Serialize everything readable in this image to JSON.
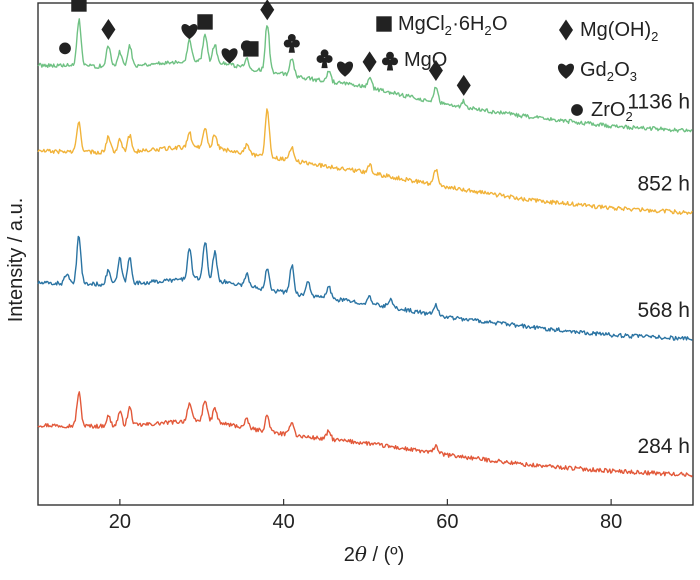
{
  "chart_data": {
    "type": "line",
    "xlabel": "2θ / (º)",
    "ylabel": "Intensity / a.u.",
    "xlim": [
      10,
      90
    ],
    "x_ticks": [
      20,
      40,
      60,
      80
    ],
    "y_ticks_shown": false,
    "grid": false,
    "series": [
      {
        "name": "284 h",
        "color": "#e2593a",
        "peaks": [
          [
            15.0,
            33
          ],
          [
            18.6,
            10
          ],
          [
            20.0,
            14
          ],
          [
            21.2,
            18
          ],
          [
            28.5,
            18
          ],
          [
            30.4,
            22
          ],
          [
            31.6,
            14
          ],
          [
            35.5,
            8
          ],
          [
            38.0,
            16
          ],
          [
            41.0,
            14
          ],
          [
            45.5,
            8
          ],
          [
            58.6,
            8
          ]
        ],
        "baseline": [
          [
            10,
            80
          ],
          [
            20,
            78
          ],
          [
            30,
            76
          ],
          [
            40,
            70
          ],
          [
            50,
            62
          ],
          [
            60,
            50
          ],
          [
            70,
            40
          ],
          [
            80,
            34
          ],
          [
            90,
            30
          ]
        ]
      },
      {
        "name": "568 h",
        "color": "#2b74a3",
        "peaks": [
          [
            13.5,
            10
          ],
          [
            15.0,
            48
          ],
          [
            18.6,
            14
          ],
          [
            20.0,
            25
          ],
          [
            21.2,
            26
          ],
          [
            28.5,
            30
          ],
          [
            30.4,
            38
          ],
          [
            31.6,
            28
          ],
          [
            35.5,
            12
          ],
          [
            38.0,
            22
          ],
          [
            41.0,
            28
          ],
          [
            43.0,
            14
          ],
          [
            45.5,
            12
          ],
          [
            50.5,
            6
          ],
          [
            53.0,
            8
          ],
          [
            58.6,
            10
          ]
        ],
        "baseline": [
          [
            10,
            222
          ],
          [
            20,
            220
          ],
          [
            30,
            218
          ],
          [
            40,
            212
          ],
          [
            50,
            202
          ],
          [
            60,
            188
          ],
          [
            70,
            178
          ],
          [
            80,
            170
          ],
          [
            90,
            166
          ]
        ]
      },
      {
        "name": "852 h",
        "color": "#f1b33a",
        "peaks": [
          [
            15.0,
            30
          ],
          [
            18.6,
            16
          ],
          [
            20.0,
            14
          ],
          [
            21.2,
            16
          ],
          [
            28.5,
            14
          ],
          [
            30.4,
            20
          ],
          [
            31.6,
            14
          ],
          [
            35.5,
            8
          ],
          [
            38.0,
            48
          ],
          [
            41.0,
            14
          ],
          [
            50.5,
            8
          ],
          [
            58.6,
            16
          ]
        ],
        "baseline": [
          [
            10,
            354
          ],
          [
            20,
            352
          ],
          [
            30,
            350
          ],
          [
            40,
            345
          ],
          [
            50,
            333
          ],
          [
            60,
            318
          ],
          [
            70,
            305
          ],
          [
            80,
            297
          ],
          [
            90,
            292
          ]
        ]
      },
      {
        "name": "1136 h",
        "color": "#6fc183",
        "peaks": [
          [
            15.0,
            46
          ],
          [
            18.6,
            20
          ],
          [
            20.0,
            14
          ],
          [
            21.2,
            20
          ],
          [
            28.5,
            22
          ],
          [
            30.4,
            28
          ],
          [
            31.6,
            18
          ],
          [
            35.5,
            10
          ],
          [
            38.0,
            48
          ],
          [
            41.0,
            18
          ],
          [
            45.5,
            10
          ],
          [
            50.5,
            10
          ],
          [
            58.6,
            16
          ],
          [
            62.0,
            6
          ]
        ],
        "baseline": [
          [
            10,
            440
          ],
          [
            20,
            438
          ],
          [
            30,
            436
          ],
          [
            40,
            430
          ],
          [
            50,
            418
          ],
          [
            60,
            400
          ],
          [
            70,
            388
          ],
          [
            80,
            379
          ],
          [
            90,
            374
          ]
        ]
      }
    ],
    "legend": [
      {
        "marker": "square",
        "label_main": "MgCl",
        "sub1": "2",
        "mid": "·6H",
        "sub2": "2",
        "end": "O"
      },
      {
        "marker": "diamond",
        "label_main": "Mg(OH)",
        "sub1": "2"
      },
      {
        "marker": "club",
        "label_main": "MgO"
      },
      {
        "marker": "heart",
        "label_main": "Gd",
        "sub1": "2",
        "mid": "O",
        "sub2": "3"
      },
      {
        "marker": "circle",
        "label_main": "ZrO",
        "sub1": "2"
      }
    ],
    "annotations": [
      {
        "marker": "circle",
        "x": 13.3
      },
      {
        "marker": "square",
        "x": 15.0
      },
      {
        "marker": "diamond",
        "x": 18.6
      },
      {
        "marker": "heart",
        "x": 28.5
      },
      {
        "marker": "square",
        "x": 30.4
      },
      {
        "marker": "heart",
        "x": 33.4
      },
      {
        "marker": "circle",
        "x": 35.5
      },
      {
        "marker": "square",
        "x": 36.0
      },
      {
        "marker": "diamond",
        "x": 38.0
      },
      {
        "marker": "club",
        "x": 41.0
      },
      {
        "marker": "club",
        "x": 45.0
      },
      {
        "marker": "heart",
        "x": 47.5
      },
      {
        "marker": "diamond",
        "x": 50.5
      },
      {
        "marker": "diamond",
        "x": 58.6
      },
      {
        "marker": "diamond",
        "x": 62.0
      }
    ]
  }
}
